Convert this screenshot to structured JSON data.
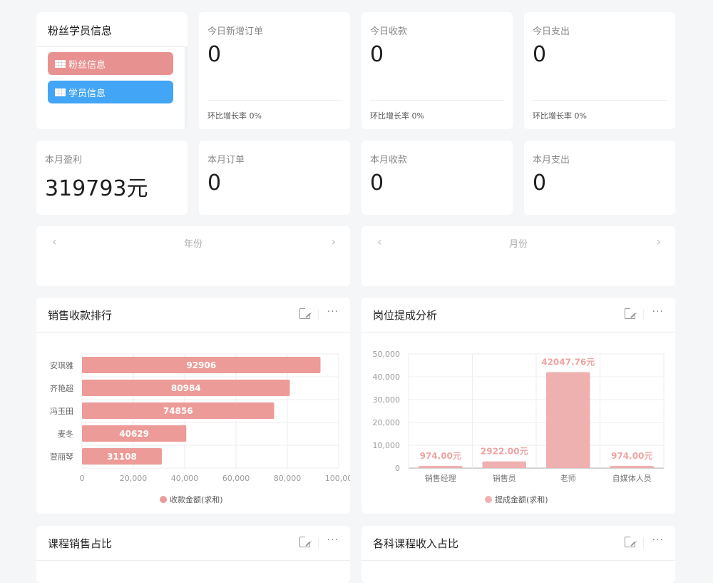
{
  "fan_panel": {
    "title": "粉丝学员信息",
    "buttons": [
      {
        "label": "粉丝信息",
        "icon": "grid-icon",
        "color": "#e89191"
      },
      {
        "label": "学员信息",
        "icon": "grid-icon",
        "color": "#42a5f5"
      }
    ]
  },
  "today_stats": [
    {
      "label": "今日新增订单",
      "value": "0",
      "footer": "环比增长率 0%"
    },
    {
      "label": "今日收款",
      "value": "0",
      "footer": "环比增长率 0%"
    },
    {
      "label": "今日支出",
      "value": "0",
      "footer": "环比增长率 0%"
    }
  ],
  "month_stats": [
    {
      "label": "本月盈利",
      "value": "319793元"
    },
    {
      "label": "本月订单",
      "value": "0"
    },
    {
      "label": "本月收款",
      "value": "0"
    },
    {
      "label": "本月支出",
      "value": "0"
    }
  ],
  "pickers": [
    {
      "title": "年份",
      "prev": "‹",
      "next": "›"
    },
    {
      "title": "月份",
      "prev": "‹",
      "next": "›"
    }
  ],
  "panels": [
    {
      "title": "销售收款排行",
      "more": "···"
    },
    {
      "title": "岗位提成分析",
      "more": "···"
    },
    {
      "title": "课程销售占比",
      "more": "···"
    },
    {
      "title": "各科课程收入占比",
      "more": "···"
    }
  ],
  "chart_data": [
    {
      "type": "bar",
      "orientation": "horizontal",
      "categories": [
        "安琪雅",
        "齐艳超",
        "冯玉田",
        "麦冬",
        "萱丽琴"
      ],
      "values": [
        92906,
        80984,
        74856,
        40629,
        31108
      ],
      "xlim": [
        0,
        100000
      ],
      "xticks": [
        "0",
        "20,000",
        "40,000",
        "60,000",
        "80,000",
        "100,00"
      ],
      "legend": "收款金额(求和)",
      "legend_position": "bottom",
      "color": "#ec9b98",
      "grid": true
    },
    {
      "type": "bar",
      "categories": [
        "销售经理",
        "销售员",
        "老师",
        "自媒体人员"
      ],
      "values": [
        974.0,
        2922.0,
        42047.76,
        974.0
      ],
      "data_labels": [
        "974.00元",
        "2922.00元",
        "42047.76元",
        "974.00元"
      ],
      "ylim": [
        0,
        50000
      ],
      "yticks": [
        "0",
        "10,000",
        "20,000",
        "30,000",
        "40,000",
        "50,000"
      ],
      "legend": "提成金额(求和)",
      "legend_position": "bottom",
      "color": "#efb0b0",
      "grid": true
    }
  ]
}
